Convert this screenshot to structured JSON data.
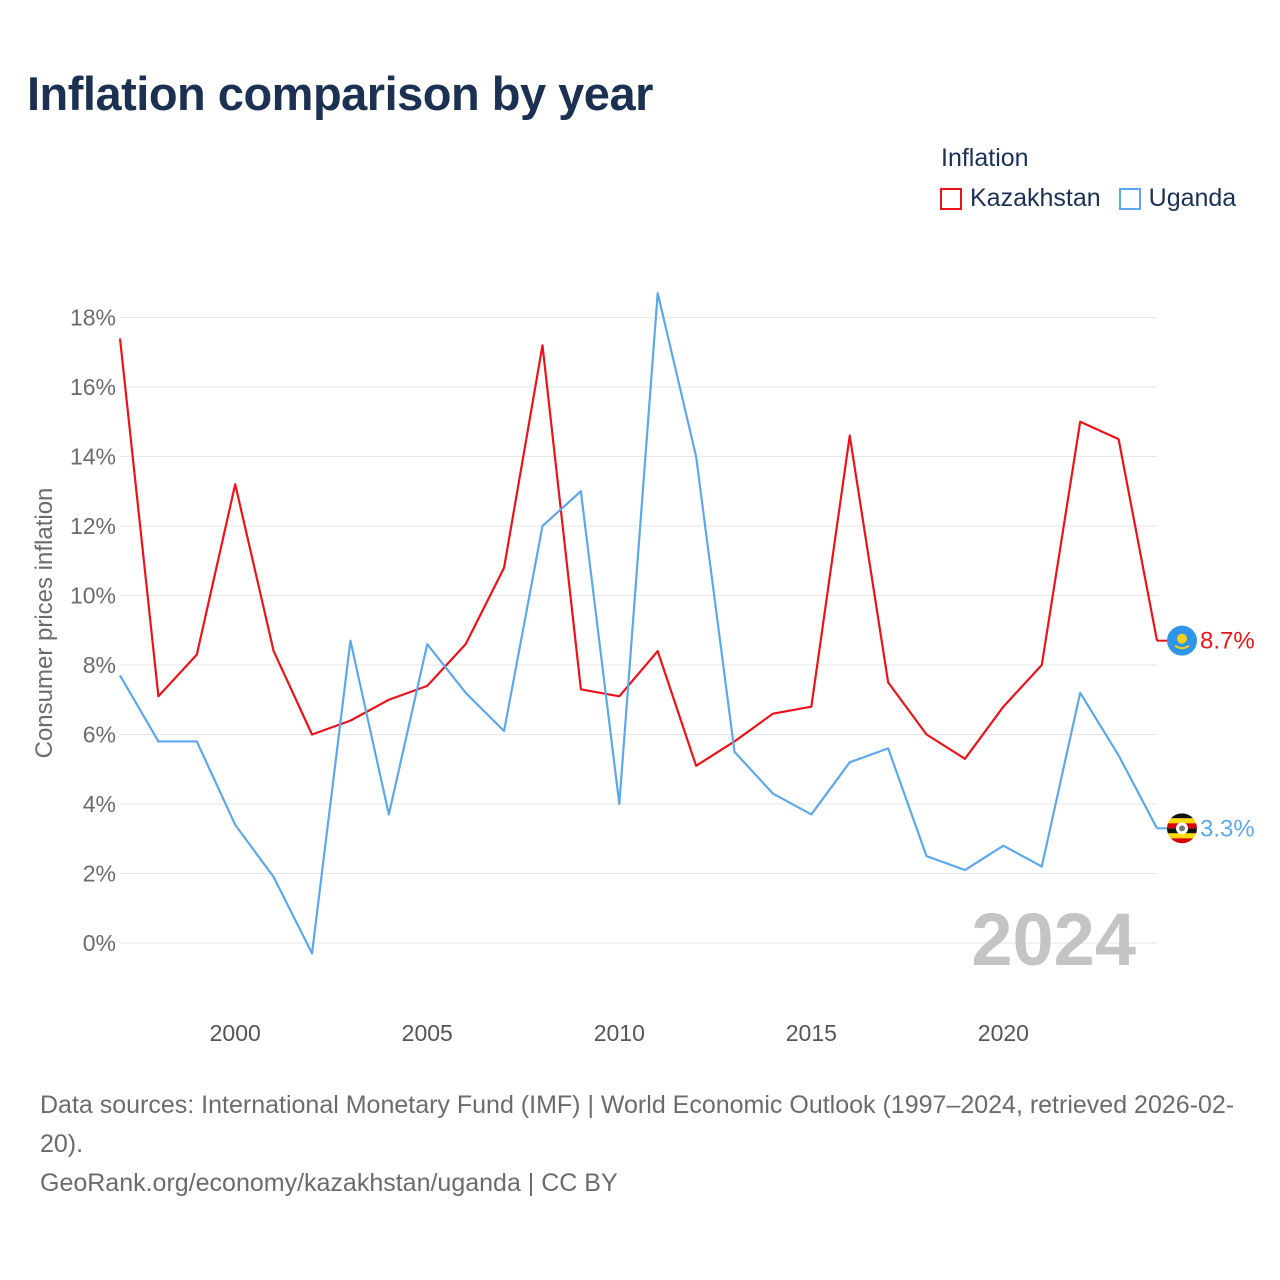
{
  "title": "Inflation comparison by year",
  "legend": {
    "title": "Inflation",
    "items": [
      {
        "label": "Kazakhstan",
        "color": "#e8141c"
      },
      {
        "label": "Uganda",
        "color": "#5ea7e8"
      }
    ]
  },
  "footer": {
    "sources": "Data sources: International Monetary Fund (IMF) | World Economic Outlook (1997–2024, retrieved 2026-02-20).",
    "link": "GeoRank.org/economy/kazakhstan/uganda | CC BY"
  },
  "chart_data": {
    "type": "line",
    "ylabel": "Consumer prices inflation",
    "year_label": "2024",
    "x": [
      1997,
      1998,
      1999,
      2000,
      2001,
      2002,
      2003,
      2004,
      2005,
      2006,
      2007,
      2008,
      2009,
      2010,
      2011,
      2012,
      2013,
      2014,
      2015,
      2016,
      2017,
      2018,
      2019,
      2020,
      2021,
      2022,
      2023,
      2024
    ],
    "xlim": [
      1997,
      2024
    ],
    "xticks": [
      2000,
      2005,
      2010,
      2015,
      2020
    ],
    "ylim": [
      -1.5,
      19
    ],
    "yticks": [
      0,
      2,
      4,
      6,
      8,
      10,
      12,
      14,
      16,
      18
    ],
    "ytick_labels": [
      "0%",
      "2%",
      "4%",
      "6%",
      "8%",
      "10%",
      "12%",
      "14%",
      "16%",
      "18%"
    ],
    "series": [
      {
        "name": "Kazakhstan",
        "color": "#e8141c",
        "end_label": "8.7%",
        "values": [
          17.4,
          7.1,
          8.3,
          13.2,
          8.4,
          6.0,
          6.4,
          7.0,
          7.4,
          8.6,
          10.8,
          17.2,
          7.3,
          7.1,
          8.4,
          5.1,
          5.8,
          6.6,
          6.8,
          14.6,
          7.5,
          6.0,
          5.3,
          6.8,
          8.0,
          15.0,
          14.5,
          8.7
        ]
      },
      {
        "name": "Uganda",
        "color": "#5ea7e8",
        "end_label": "3.3%",
        "values": [
          7.7,
          5.8,
          5.8,
          3.4,
          1.9,
          -0.3,
          8.7,
          3.7,
          8.6,
          7.2,
          6.1,
          12.0,
          13.0,
          4.0,
          18.7,
          14.0,
          5.5,
          4.3,
          3.7,
          5.2,
          5.6,
          2.5,
          2.1,
          2.8,
          2.2,
          7.2,
          5.4,
          3.3
        ]
      }
    ]
  }
}
